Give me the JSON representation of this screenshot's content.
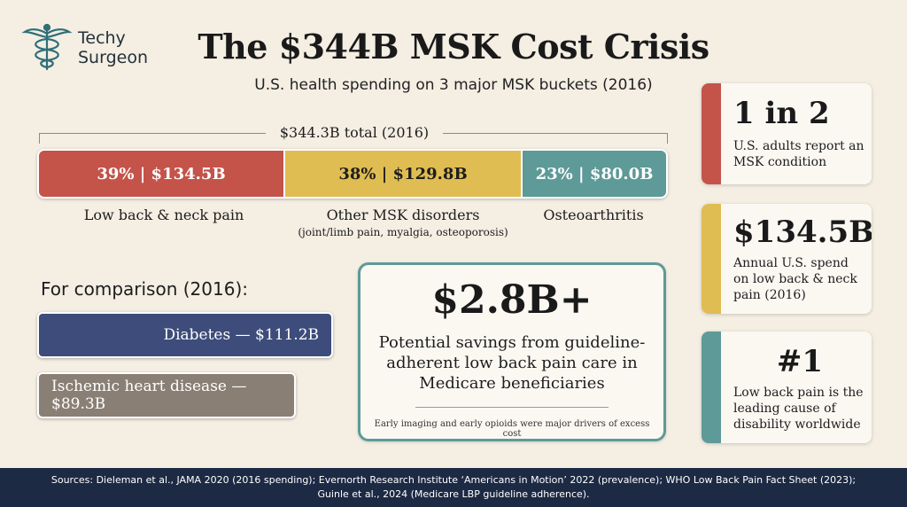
{
  "brand": {
    "line1": "Techy",
    "line2": "Surgeon",
    "icon": "caduceus-icon"
  },
  "title": "The $344B MSK Cost Crisis",
  "subtitle": "U.S. health spending on 3 major MSK buckets (2016)",
  "total_label": "$344.3B total (2016)",
  "segments": [
    {
      "label": "39% | $134.5B",
      "name": "Low back & neck pain",
      "sub": "",
      "percent": 39,
      "color": "#c4534a"
    },
    {
      "label": "38% | $129.8B",
      "name": "Other MSK disorders",
      "sub": "(joint/limb pain, myalgia, osteoporosis)",
      "percent": 38,
      "color": "#e0bd52"
    },
    {
      "label": "23% | $80.0B",
      "name": "Osteoarthritis",
      "sub": "",
      "percent": 23,
      "color": "#5d9a98"
    }
  ],
  "comparison": {
    "title": "For comparison (2016):",
    "items": [
      {
        "label": "Diabetes — $111.2B",
        "color": "#3d4c7a"
      },
      {
        "label": "Ischemic heart disease — $89.3B",
        "color": "#8a7f74"
      }
    ]
  },
  "savings": {
    "value": "$2.8B+",
    "description": "Potential savings from guideline-adherent low back pain care in Medicare beneficiaries",
    "note": "Early imaging and early opioids were major drivers of excess cost"
  },
  "stats": [
    {
      "big": "1 in 2",
      "text": "U.S. adults report an MSK condition",
      "color": "#c4534a"
    },
    {
      "big": "$134.5B",
      "text": "Annual U.S. spend on low back & neck pain (2016)",
      "color": "#e0bd52"
    },
    {
      "big": "#1",
      "text": "Low back pain is the leading cause of disability worldwide",
      "color": "#5d9a98"
    }
  ],
  "footer": {
    "line1": "Sources: Dieleman et al., JAMA 2020 (2016 spending); Evernorth Research Institute ‘Americans in Motion’ 2022 (prevalence); WHO Low Back Pain Fact Sheet (2023);",
    "line2": "Guinle et al., 2024 (Medicare LBP guideline adherence)."
  }
}
